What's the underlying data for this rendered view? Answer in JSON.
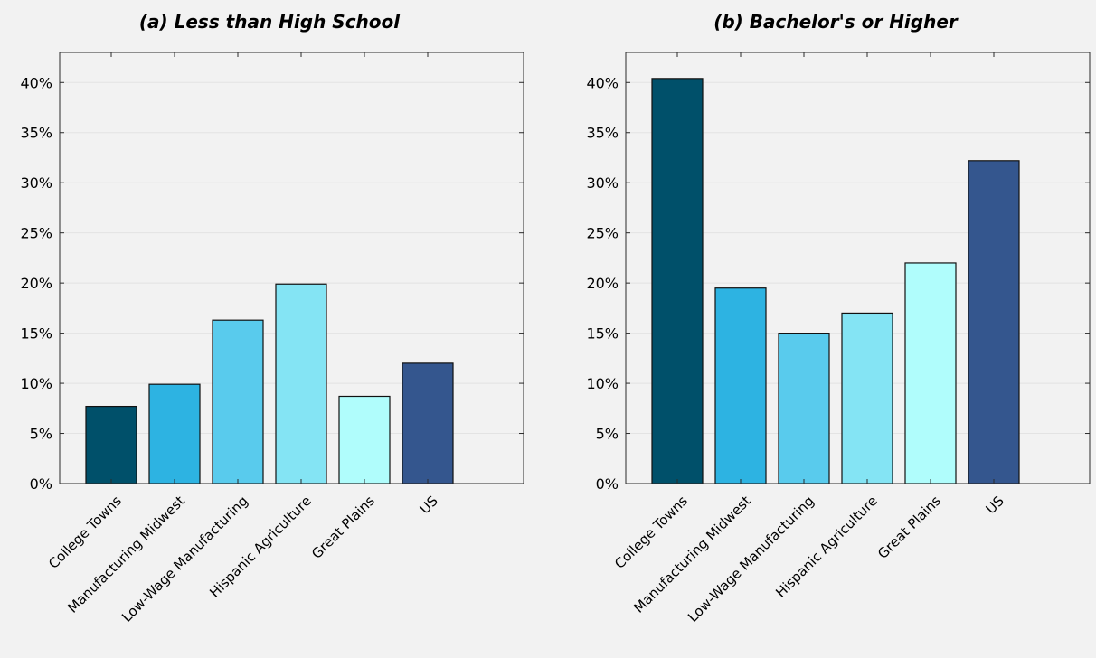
{
  "chart_data": [
    {
      "type": "bar",
      "title": "(a) Less than High School",
      "categories": [
        "College Towns",
        "Manufacturing Midwest",
        "Low-Wage Manufacturing",
        "Hispanic Agriculture",
        "Great Plains",
        "US"
      ],
      "values": [
        7.7,
        9.9,
        16.3,
        19.9,
        8.7,
        12.0
      ],
      "colors": [
        "#00506a",
        "#2db3e2",
        "#59cbed",
        "#84e4f4",
        "#b0fdfc",
        "#34568e"
      ],
      "ylim": [
        0,
        43
      ],
      "yticks": [
        0,
        5,
        10,
        15,
        20,
        25,
        30,
        35,
        40
      ],
      "ytick_labels": [
        "0%",
        "5%",
        "10%",
        "15%",
        "20%",
        "25%",
        "30%",
        "35%",
        "40%"
      ],
      "grid": true,
      "xlabel": "",
      "ylabel": ""
    },
    {
      "type": "bar",
      "title": "(b) Bachelor's or Higher",
      "categories": [
        "College Towns",
        "Manufacturing Midwest",
        "Low-Wage Manufacturing",
        "Hispanic Agriculture",
        "Great Plains",
        "US"
      ],
      "values": [
        40.4,
        19.5,
        15.0,
        17.0,
        22.0,
        32.2
      ],
      "colors": [
        "#00506a",
        "#2db3e2",
        "#59cbed",
        "#84e4f4",
        "#b0fdfc",
        "#34568e"
      ],
      "ylim": [
        0,
        43
      ],
      "yticks": [
        0,
        5,
        10,
        15,
        20,
        25,
        30,
        35,
        40
      ],
      "ytick_labels": [
        "0%",
        "5%",
        "10%",
        "15%",
        "20%",
        "25%",
        "30%",
        "35%",
        "40%"
      ],
      "grid": true,
      "xlabel": "",
      "ylabel": ""
    }
  ]
}
